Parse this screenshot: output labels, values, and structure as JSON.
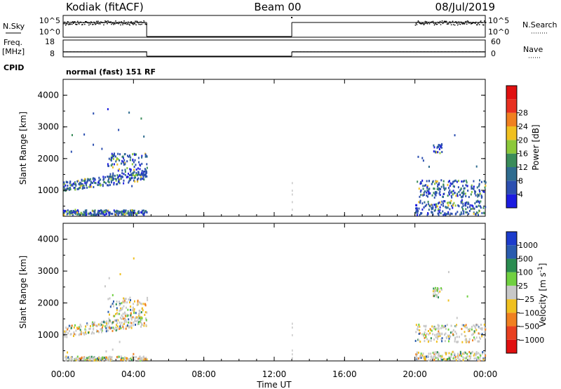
{
  "header": {
    "title_left": "Kodiak (fitACF)",
    "title_center": "Beam 00",
    "title_right": "08/Jul/2019"
  },
  "strips": {
    "nsky_label": "N.Sky",
    "nsky_ticks": [
      "10^5",
      "10^0"
    ],
    "nsky_right_ticks": [
      "10^5",
      "10^0"
    ],
    "nsearch_label": "N.Search",
    "freq_label_1": "Freq.",
    "freq_label_2": "[MHz]",
    "freq_ticks": [
      "18",
      "8"
    ],
    "nave_label": "Nave",
    "nave_ticks": [
      "60",
      "0"
    ],
    "cpid_label": "CPID",
    "cpid_text": "normal (fast) 151 RF"
  },
  "xaxis": {
    "label": "Time UT",
    "ticks": [
      "00:00",
      "04:00",
      "08:00",
      "12:00",
      "16:00",
      "20:00",
      "00:00"
    ]
  },
  "chart_data": [
    {
      "type": "heatmap",
      "name": "power",
      "ylabel": "Slant Range [km]",
      "ylim": [
        180,
        4500
      ],
      "yticks": [
        "1000",
        "2000",
        "3000",
        "4000"
      ],
      "xlim_hours": [
        0,
        24
      ],
      "colorbar_label": "Power [dB]",
      "colorbar_ticks": [
        "4",
        "8",
        "12",
        "16",
        "20",
        "24",
        "28"
      ],
      "colorbar_colors": [
        "#1c1ce0",
        "#2c4fb0",
        "#2f6c8f",
        "#3a8c5a",
        "#8cc83a",
        "#f0c020",
        "#f08020",
        "#e83020",
        "#e01010"
      ],
      "data_intervals_hours": [
        [
          0,
          4.75
        ],
        [
          13.0,
          13.05
        ],
        [
          20.0,
          24
        ]
      ],
      "echo_bands": [
        {
          "hours": [
            0,
            4.75
          ],
          "range_km": [
            1000,
            1300
          ]
        },
        {
          "hours": [
            0,
            4.75
          ],
          "range_km": [
            250,
            400
          ]
        },
        {
          "hours": [
            2.5,
            4.75
          ],
          "range_km": [
            1500,
            2200
          ]
        },
        {
          "hours": [
            20,
            24
          ],
          "range_km": [
            800,
            1350
          ]
        },
        {
          "hours": [
            20,
            24
          ],
          "range_km": [
            250,
            700
          ]
        },
        {
          "hours": [
            21,
            21.5
          ],
          "range_km": [
            2200,
            2500
          ]
        }
      ]
    },
    {
      "type": "heatmap",
      "name": "velocity",
      "ylabel": "Slant Range [km]",
      "ylim": [
        180,
        4500
      ],
      "yticks": [
        "1000",
        "2000",
        "3000",
        "4000"
      ],
      "xlim_hours": [
        0,
        24
      ],
      "colorbar_label": "Velocity [m s",
      "colorbar_label_sup": "-1",
      "colorbar_label_end": "]",
      "colorbar_ticks": [
        "1000",
        "500",
        "100",
        "25",
        "−25",
        "−100",
        "−500",
        "−1000"
      ],
      "colorbar_colors": [
        "#1c3ccc",
        "#2a5cae",
        "#2a8c50",
        "#70d040",
        "#c8c8c8",
        "#f0c020",
        "#f08020",
        "#e84020",
        "#e01010"
      ],
      "data_intervals_hours": [
        [
          0,
          4.75
        ],
        [
          13.0,
          13.05
        ],
        [
          20.0,
          24
        ]
      ],
      "echo_bands": [
        {
          "hours": [
            0,
            4.75
          ],
          "range_km": [
            950,
            1300
          ]
        },
        {
          "hours": [
            0,
            4.75
          ],
          "range_km": [
            200,
            350
          ]
        },
        {
          "hours": [
            2.5,
            4.75
          ],
          "range_km": [
            1500,
            2200
          ]
        },
        {
          "hours": [
            20,
            24
          ],
          "range_km": [
            800,
            1350
          ]
        },
        {
          "hours": [
            20,
            24
          ],
          "range_km": [
            200,
            500
          ]
        },
        {
          "hours": [
            21,
            21.5
          ],
          "range_km": [
            2200,
            2500
          ]
        }
      ]
    }
  ]
}
